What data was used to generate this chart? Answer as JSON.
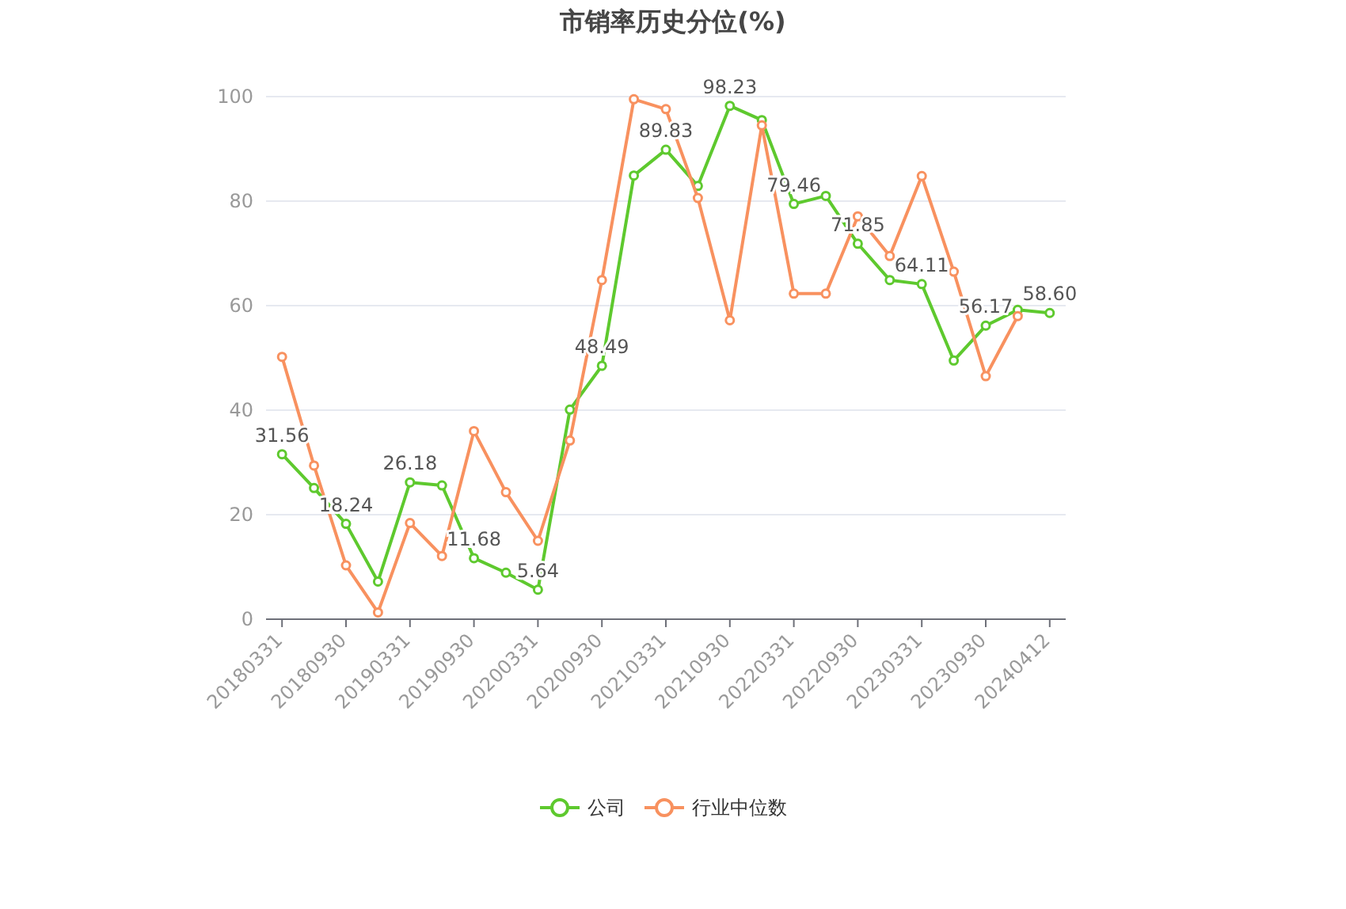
{
  "chart_data": {
    "type": "line",
    "title": "市销率历史分位(%)",
    "categories": [
      "20180331",
      null,
      "20180930",
      null,
      "20190331",
      null,
      "20190930",
      null,
      "20200331",
      null,
      "20200930",
      null,
      "20210331",
      null,
      "20210930",
      null,
      "20220331",
      null,
      "20220930",
      null,
      "20230331",
      null,
      "20230930",
      null,
      "20240412"
    ],
    "series": [
      {
        "name": "公司",
        "color": "#5ec92e",
        "values": [
          31.56,
          25.1,
          18.24,
          7.2,
          26.18,
          25.6,
          11.68,
          8.9,
          5.64,
          40.1,
          48.49,
          84.9,
          89.83,
          82.9,
          98.23,
          95.5,
          79.46,
          81.0,
          71.85,
          64.9,
          64.11,
          49.5,
          56.17,
          59.2,
          58.6
        ],
        "value_labels": [
          "31.56",
          null,
          "18.24",
          null,
          "26.18",
          null,
          "11.68",
          null,
          "5.64",
          null,
          "48.49",
          null,
          "89.83",
          null,
          "98.23",
          null,
          "79.46",
          null,
          "71.85",
          null,
          "64.11",
          null,
          "56.17",
          null,
          "58.60"
        ]
      },
      {
        "name": "行业中位数",
        "color": "#f8915f",
        "values": [
          50.2,
          29.4,
          10.3,
          1.3,
          18.4,
          12.1,
          36.0,
          24.3,
          15.0,
          34.2,
          64.9,
          99.5,
          97.6,
          80.6,
          57.2,
          94.5,
          62.3,
          62.3,
          77.1,
          69.5,
          84.8,
          66.5,
          46.5,
          58.0,
          null
        ]
      }
    ],
    "ylim": [
      0,
      100
    ],
    "yticks": [
      0,
      20,
      40,
      60,
      80,
      100
    ],
    "grid": "y",
    "legend": "bottom",
    "marker": "circle",
    "line_style": "solid"
  }
}
